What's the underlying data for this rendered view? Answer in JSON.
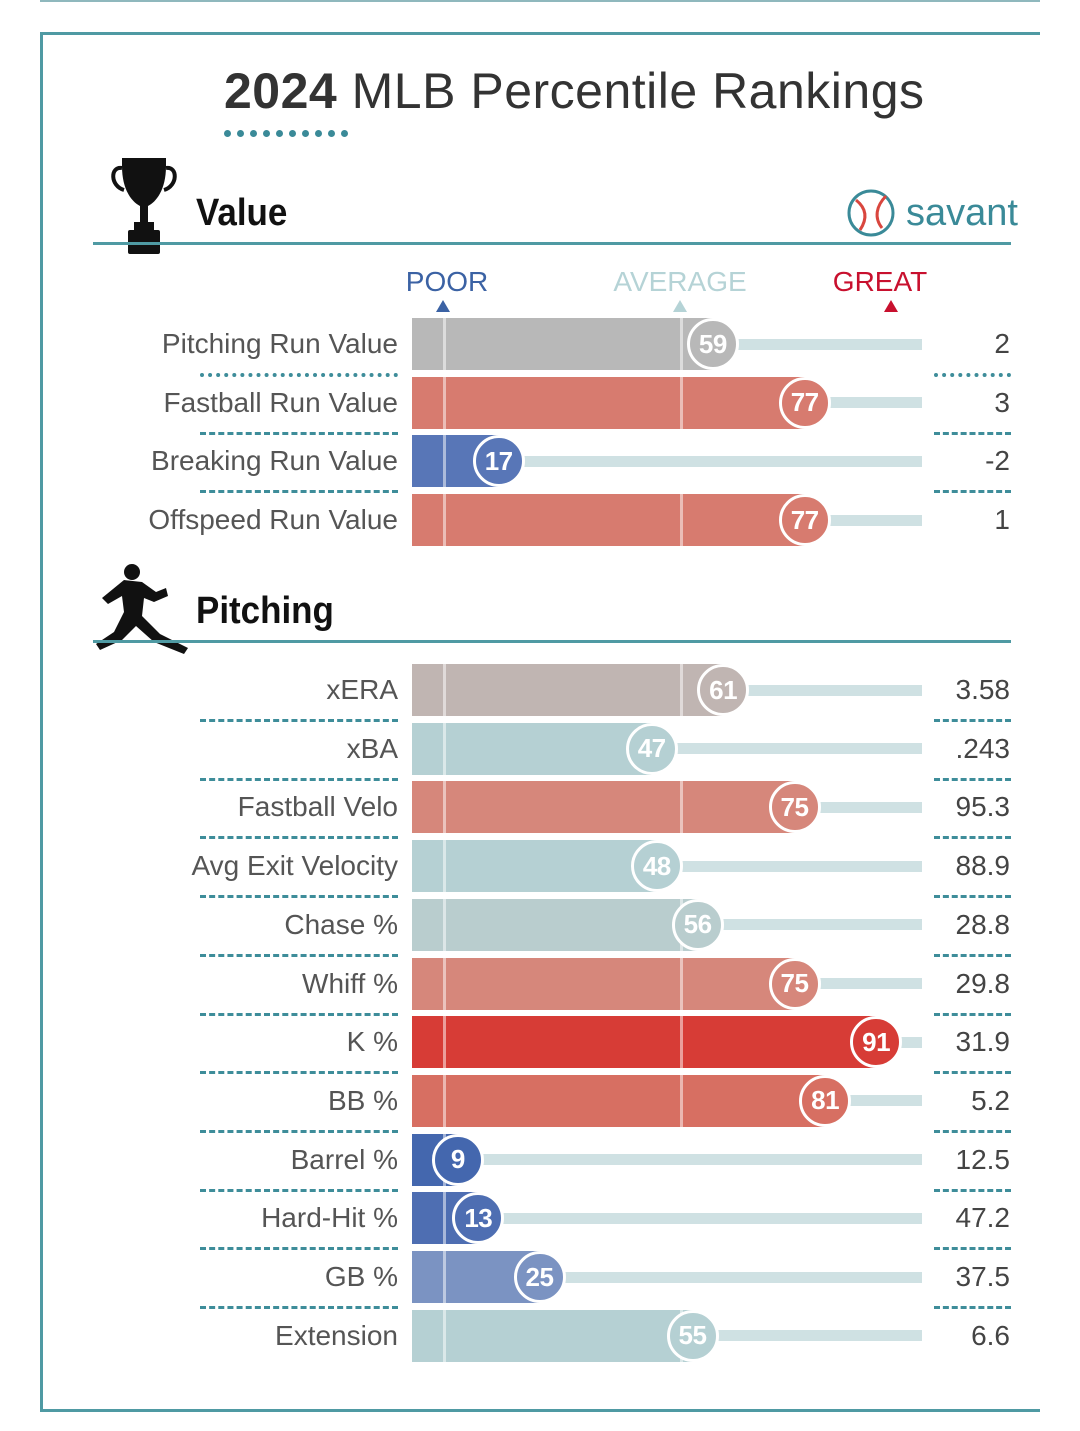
{
  "title": {
    "year": "2024",
    "rest": "MLB Percentile Rankings"
  },
  "brand": {
    "name": "savant",
    "color": "#3a8a98"
  },
  "scale": {
    "poor": "POOR",
    "average": "AVERAGE",
    "great": "GREAT",
    "poor_color": "#3b62a4",
    "average_color": "#b5d3d6",
    "great_color": "#c8102e"
  },
  "sections": {
    "value": {
      "title": "Value",
      "icon": "trophy-icon"
    },
    "pitching": {
      "title": "Pitching",
      "icon": "pitcher-icon"
    }
  },
  "chart_data": {
    "type": "bar",
    "orientation": "horizontal",
    "xlim": [
      0,
      100
    ],
    "sections": [
      {
        "name": "Value",
        "rows": [
          {
            "label": "Pitching Run Value",
            "percentile": 59,
            "value": "2",
            "color": "#b8b8b8"
          },
          {
            "label": "Fastball Run Value",
            "percentile": 77,
            "value": "3",
            "color": "#d77b6f"
          },
          {
            "label": "Breaking Run Value",
            "percentile": 17,
            "value": "-2",
            "color": "#5876b7"
          },
          {
            "label": "Offspeed Run Value",
            "percentile": 77,
            "value": "1",
            "color": "#d77b6f"
          }
        ]
      },
      {
        "name": "Pitching",
        "rows": [
          {
            "label": "xERA",
            "percentile": 61,
            "value": "3.58",
            "color": "#c0b5b2"
          },
          {
            "label": "xBA",
            "percentile": 47,
            "value": ".243",
            "color": "#b5d0d3"
          },
          {
            "label": "Fastball Velo",
            "percentile": 75,
            "value": "95.3",
            "color": "#d6877b"
          },
          {
            "label": "Avg Exit Velocity",
            "percentile": 48,
            "value": "88.9",
            "color": "#b5d0d3"
          },
          {
            "label": "Chase %",
            "percentile": 56,
            "value": "28.8",
            "color": "#b9cdce"
          },
          {
            "label": "Whiff %",
            "percentile": 75,
            "value": "29.8",
            "color": "#d6877b"
          },
          {
            "label": "K %",
            "percentile": 91,
            "value": "31.9",
            "color": "#d73c36"
          },
          {
            "label": "BB %",
            "percentile": 81,
            "value": "5.2",
            "color": "#d76f62"
          },
          {
            "label": "Barrel %",
            "percentile": 9,
            "value": "12.5",
            "color": "#4467ae"
          },
          {
            "label": "Hard-Hit %",
            "percentile": 13,
            "value": "47.2",
            "color": "#4e6eb2"
          },
          {
            "label": "GB %",
            "percentile": 25,
            "value": "37.5",
            "color": "#7b93c2"
          },
          {
            "label": "Extension",
            "percentile": 55,
            "value": "6.6",
            "color": "#b5d0d3"
          }
        ]
      }
    ]
  }
}
